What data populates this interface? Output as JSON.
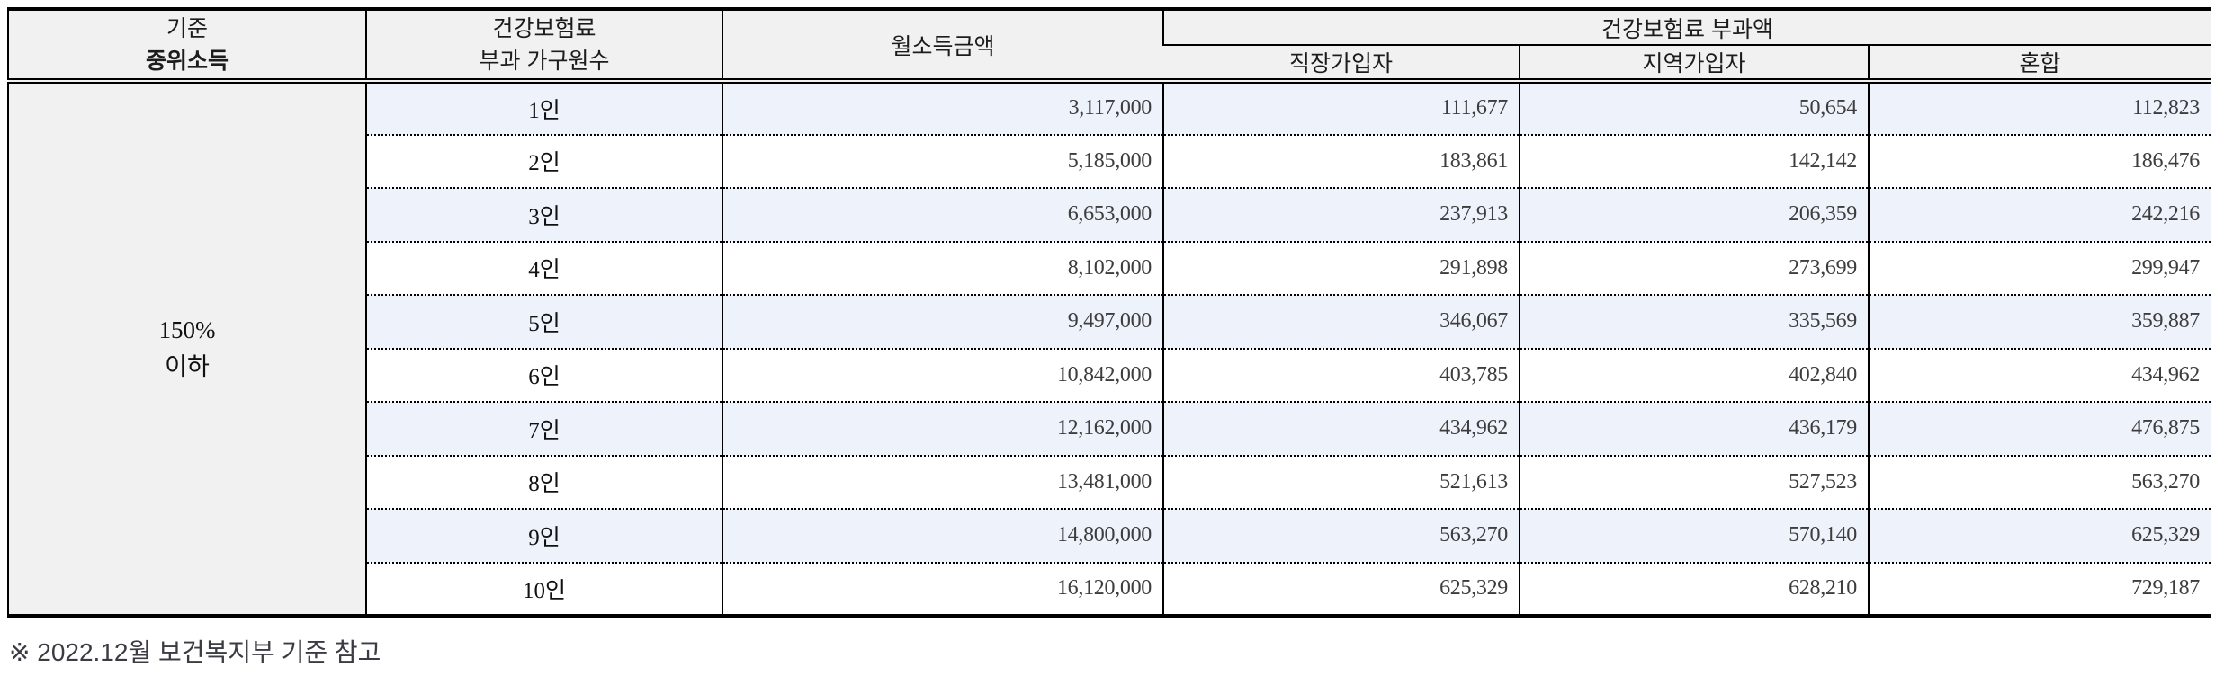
{
  "table": {
    "header": {
      "criteria_line1": "기준",
      "criteria_line2": "중위소득",
      "household_line1": "건강보험료",
      "household_line2": "부과 가구원수",
      "income": "월소득금액",
      "premium_group": "건강보험료 부과액",
      "sub_workplace": "직장가입자",
      "sub_regional": "지역가입자",
      "sub_mixed": "혼합"
    },
    "criteria_cell": {
      "line1": "150%",
      "line2": "이하"
    },
    "rows": [
      {
        "household": "1인",
        "income": "3,117,000",
        "workplace": "111,677",
        "regional": "50,654",
        "mixed": "112,823"
      },
      {
        "household": "2인",
        "income": "5,185,000",
        "workplace": "183,861",
        "regional": "142,142",
        "mixed": "186,476"
      },
      {
        "household": "3인",
        "income": "6,653,000",
        "workplace": "237,913",
        "regional": "206,359",
        "mixed": "242,216"
      },
      {
        "household": "4인",
        "income": "8,102,000",
        "workplace": "291,898",
        "regional": "273,699",
        "mixed": "299,947"
      },
      {
        "household": "5인",
        "income": "9,497,000",
        "workplace": "346,067",
        "regional": "335,569",
        "mixed": "359,887"
      },
      {
        "household": "6인",
        "income": "10,842,000",
        "workplace": "403,785",
        "regional": "402,840",
        "mixed": "434,962"
      },
      {
        "household": "7인",
        "income": "12,162,000",
        "workplace": "434,962",
        "regional": "436,179",
        "mixed": "476,875"
      },
      {
        "household": "8인",
        "income": "13,481,000",
        "workplace": "521,613",
        "regional": "527,523",
        "mixed": "563,270"
      },
      {
        "household": "9인",
        "income": "14,800,000",
        "workplace": "563,270",
        "regional": "570,140",
        "mixed": "625,329"
      },
      {
        "household": "10인",
        "income": "16,120,000",
        "workplace": "625,329",
        "regional": "628,210",
        "mixed": "729,187"
      }
    ]
  },
  "footnote": "※ 2022.12월 보건복지부 기준 참고",
  "colors": {
    "border": "#000000",
    "header_bg": "#f1f1f1",
    "row_stripe_bg": "#edf2fb",
    "row_bg": "#ffffff",
    "number_text": "#3d3d3d",
    "footnote_text": "#3b3b43"
  }
}
